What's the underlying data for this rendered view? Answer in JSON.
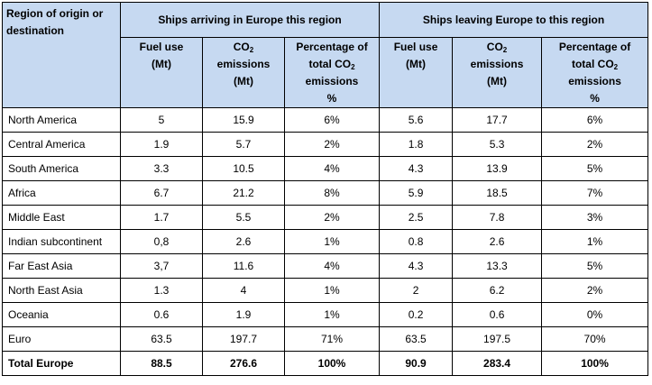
{
  "table": {
    "corner_header": "Region of origin or destination",
    "arriving_group": "Ships arriving in Europe this region",
    "leaving_group": "Ships leaving Europe to this region",
    "sub_headers": {
      "fuel_line1": "Fuel use",
      "fuel_line2": "(Mt)",
      "co2_prefix": "CO",
      "co2_sub": "2",
      "co2_line2": "emissions",
      "co2_line3": "(Mt)",
      "pct_line1": "Percentage of",
      "pct_line2_prefix": "total CO",
      "pct_line2_sub": "2",
      "pct_line3": "emissions",
      "pct_line4": "%"
    },
    "rows": [
      {
        "region": "North America",
        "arr_fuel": "5",
        "arr_co2": "15.9",
        "arr_pct": "6%",
        "lev_fuel": "5.6",
        "lev_co2": "17.7",
        "lev_pct": "6%"
      },
      {
        "region": "Central America",
        "arr_fuel": "1.9",
        "arr_co2": "5.7",
        "arr_pct": "2%",
        "lev_fuel": "1.8",
        "lev_co2": "5.3",
        "lev_pct": "2%"
      },
      {
        "region": "South America",
        "arr_fuel": "3.3",
        "arr_co2": "10.5",
        "arr_pct": "4%",
        "lev_fuel": "4.3",
        "lev_co2": "13.9",
        "lev_pct": "5%"
      },
      {
        "region": "Africa",
        "arr_fuel": "6.7",
        "arr_co2": "21.2",
        "arr_pct": "8%",
        "lev_fuel": "5.9",
        "lev_co2": "18.5",
        "lev_pct": "7%"
      },
      {
        "region": "Middle East",
        "arr_fuel": "1.7",
        "arr_co2": "5.5",
        "arr_pct": "2%",
        "lev_fuel": "2.5",
        "lev_co2": "7.8",
        "lev_pct": "3%"
      },
      {
        "region": "Indian subcontinent",
        "arr_fuel": "0,8",
        "arr_co2": "2.6",
        "arr_pct": "1%",
        "lev_fuel": "0.8",
        "lev_co2": "2.6",
        "lev_pct": "1%"
      },
      {
        "region": "Far East Asia",
        "arr_fuel": "3,7",
        "arr_co2": "11.6",
        "arr_pct": "4%",
        "lev_fuel": "4.3",
        "lev_co2": "13.3",
        "lev_pct": "5%"
      },
      {
        "region": "North East Asia",
        "arr_fuel": "1.3",
        "arr_co2": "4",
        "arr_pct": "1%",
        "lev_fuel": "2",
        "lev_co2": "6.2",
        "lev_pct": "2%"
      },
      {
        "region": "Oceania",
        "arr_fuel": "0.6",
        "arr_co2": "1.9",
        "arr_pct": "1%",
        "lev_fuel": "0.2",
        "lev_co2": "0.6",
        "lev_pct": "0%"
      },
      {
        "region": "Euro",
        "arr_fuel": "63.5",
        "arr_co2": "197.7",
        "arr_pct": "71%",
        "lev_fuel": "63.5",
        "lev_co2": "197.5",
        "lev_pct": "70%"
      }
    ],
    "total": {
      "region": "Total Europe",
      "arr_fuel": "88.5",
      "arr_co2": "276.6",
      "arr_pct": "100%",
      "lev_fuel": "90.9",
      "lev_co2": "283.4",
      "lev_pct": "100%"
    }
  }
}
